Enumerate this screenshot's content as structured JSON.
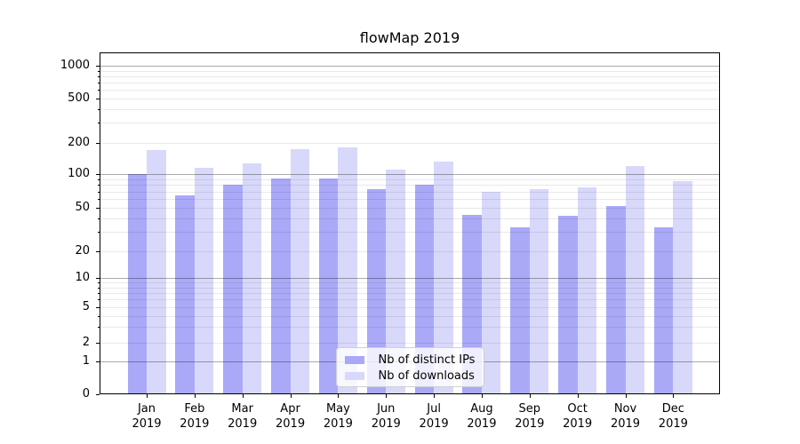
{
  "title": "flowMap 2019",
  "chart_data": {
    "type": "bar",
    "title": "flowMap 2019",
    "xlabel": "",
    "ylabel": "",
    "yscale": "symlog",
    "grid": true,
    "yticks": [
      0,
      1,
      2,
      5,
      10,
      20,
      50,
      100,
      200,
      500,
      1000
    ],
    "ylim": [
      0,
      1300
    ],
    "categories": [
      "Jan",
      "Feb",
      "Mar",
      "Apr",
      "May",
      "Jun",
      "Jul",
      "Aug",
      "Sep",
      "Oct",
      "Nov",
      "Dec"
    ],
    "x_tick_year": "2019",
    "series": [
      {
        "name": "Nb of distinct IPs",
        "color": "#a9a9f8",
        "values": [
          100,
          65,
          80,
          91,
          91,
          73,
          80,
          43,
          33,
          42,
          52,
          33
        ]
      },
      {
        "name": "Nb of downloads",
        "color": "#d8d8fa",
        "values": [
          170,
          114,
          127,
          173,
          180,
          110,
          132,
          70,
          73,
          76,
          120,
          87
        ]
      }
    ],
    "legend_position": "lower center"
  },
  "colors": {
    "background": "#ffffff",
    "bar_distinct_ips": "#a9a9f8",
    "bar_downloads": "#d8d8fa",
    "axis": "#000000",
    "text": "#000000",
    "grid_major": "#ababab",
    "grid_minor": "#e9e9e9",
    "legend_border": "#d0d0d0"
  }
}
